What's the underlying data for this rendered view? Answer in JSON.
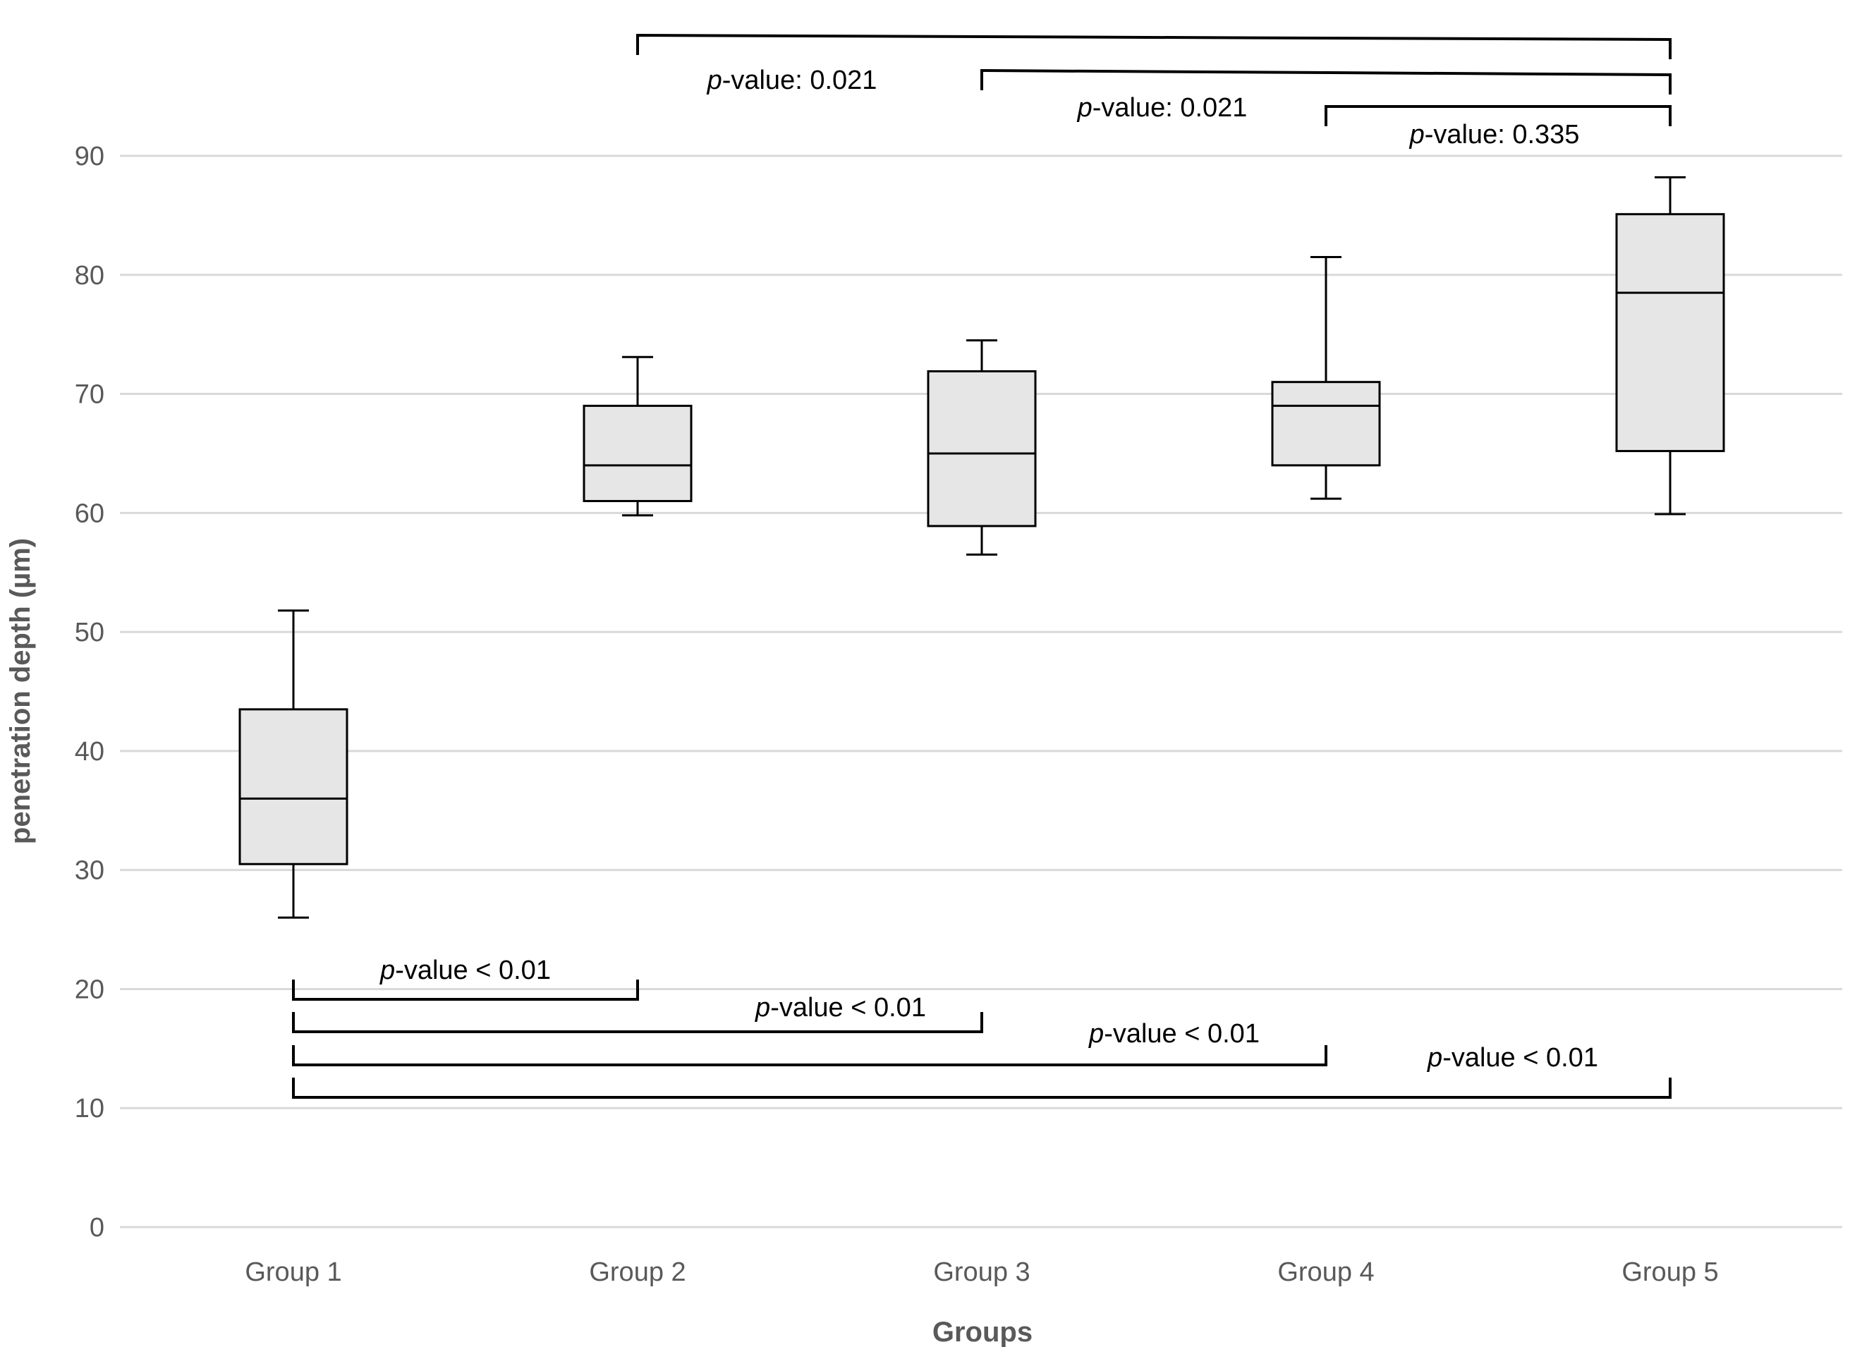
{
  "chart_data": {
    "type": "box",
    "title": "",
    "xlabel": "Groups",
    "ylabel": "penetration depth (µm)",
    "ylim": [
      0,
      90
    ],
    "yticks": [
      "0",
      "10",
      "20",
      "30",
      "40",
      "50",
      "60",
      "70",
      "80",
      "90"
    ],
    "categories": [
      "Group 1",
      "Group 2",
      "Group 3",
      "Group 4",
      "Group 5"
    ],
    "grid": true,
    "legend": "none",
    "colors": {
      "box_fill": "#e7e6e6",
      "box_stroke": "#000000",
      "grid": "#d9d9d9",
      "tick_text": "#595959"
    },
    "boxes": [
      {
        "category": "Group 1",
        "min": 26,
        "q1": 30.5,
        "median": 36,
        "q3": 43.5,
        "max": 51.8
      },
      {
        "category": "Group 2",
        "min": 59.8,
        "q1": 61,
        "median": 64,
        "q3": 69,
        "max": 73.1
      },
      {
        "category": "Group 3",
        "min": 56.5,
        "q1": 58.9,
        "median": 65,
        "q3": 71.9,
        "max": 74.5
      },
      {
        "category": "Group 4",
        "min": 61.2,
        "q1": 64,
        "median": 69,
        "q3": 71,
        "max": 81.5
      },
      {
        "category": "Group 5",
        "min": 59.9,
        "q1": 65.2,
        "median": 78.5,
        "q3": 85.1,
        "max": 88.2
      }
    ],
    "comparisons": [
      {
        "from": "Group 2",
        "to": "Group 5",
        "italic": "p",
        "label": "-value: 0.021"
      },
      {
        "from": "Group 3",
        "to": "Group 5",
        "italic": "p",
        "label": "-value: 0.021"
      },
      {
        "from": "Group 4",
        "to": "Group 5",
        "italic": "p",
        "label": "-value: 0.335"
      },
      {
        "from": "Group 1",
        "to": "Group 2",
        "italic": "p",
        "label": "-value < 0.01"
      },
      {
        "from": "Group 1",
        "to": "Group 3",
        "italic": "p",
        "label": "-value < 0.01"
      },
      {
        "from": "Group 1",
        "to": "Group 4",
        "italic": "p",
        "label": "-value < 0.01"
      },
      {
        "from": "Group 1",
        "to": "Group 5",
        "italic": "p",
        "label": "-value < 0.01"
      }
    ]
  }
}
